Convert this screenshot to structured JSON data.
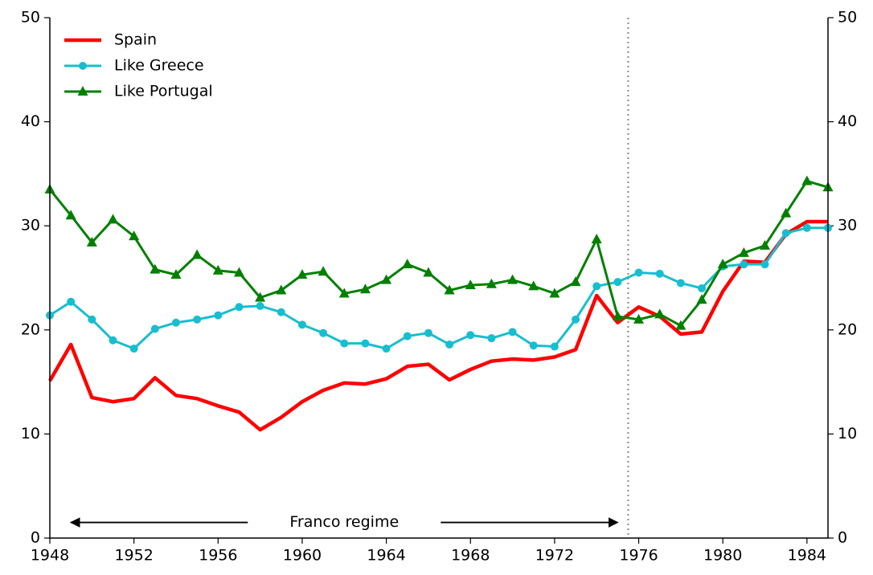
{
  "chart_data": {
    "type": "line",
    "x": [
      1948,
      1949,
      1950,
      1951,
      1952,
      1953,
      1954,
      1955,
      1956,
      1957,
      1958,
      1959,
      1960,
      1961,
      1962,
      1963,
      1964,
      1965,
      1966,
      1967,
      1968,
      1969,
      1970,
      1971,
      1972,
      1973,
      1974,
      1975,
      1976,
      1977,
      1978,
      1979,
      1980,
      1981,
      1982,
      1983,
      1984,
      1985
    ],
    "series": [
      {
        "name": "Spain",
        "color": "#ff0000",
        "marker": "none",
        "values": [
          15.1,
          18.6,
          13.5,
          13.1,
          13.4,
          15.4,
          13.7,
          13.4,
          12.7,
          12.1,
          10.4,
          11.6,
          13.1,
          14.2,
          14.9,
          14.8,
          15.3,
          16.5,
          16.7,
          15.2,
          16.2,
          17.0,
          17.2,
          17.1,
          17.4,
          18.1,
          23.3,
          20.7,
          22.2,
          21.3,
          19.6,
          19.8,
          23.7,
          26.6,
          26.5,
          29.2,
          30.4,
          30.4
        ]
      },
      {
        "name": "Like Greece",
        "color": "#17becf",
        "marker": "circle",
        "values": [
          21.4,
          22.7,
          21.0,
          19.0,
          18.2,
          20.1,
          20.7,
          21.0,
          21.4,
          22.2,
          22.3,
          21.7,
          20.5,
          19.7,
          18.7,
          18.7,
          18.2,
          19.4,
          19.7,
          18.6,
          19.5,
          19.2,
          19.8,
          18.5,
          18.4,
          21.0,
          24.2,
          24.6,
          25.5,
          25.4,
          24.5,
          24.0,
          26.1,
          26.3,
          26.3,
          29.3,
          29.8,
          29.8
        ]
      },
      {
        "name": "Like Portugal",
        "color": "#008000",
        "marker": "triangle",
        "values": [
          33.5,
          31.0,
          28.4,
          30.6,
          29.0,
          25.8,
          25.3,
          27.2,
          25.7,
          25.5,
          23.1,
          23.8,
          25.3,
          25.6,
          23.5,
          23.9,
          24.8,
          26.3,
          25.5,
          23.8,
          24.3,
          24.4,
          24.8,
          24.2,
          23.5,
          24.6,
          28.7,
          21.3,
          21.0,
          21.5,
          20.4,
          22.9,
          26.3,
          27.4,
          28.1,
          31.2,
          34.3,
          33.7
        ]
      }
    ],
    "xlim": [
      1948,
      1985
    ],
    "xticks": [
      1948,
      1952,
      1956,
      1960,
      1964,
      1968,
      1972,
      1976,
      1980,
      1984
    ],
    "ylim": [
      0,
      50
    ],
    "yticks": [
      0,
      10,
      20,
      30,
      40,
      50
    ],
    "y2lim": [
      0,
      50
    ],
    "y2ticks": [
      0,
      10,
      20,
      30,
      40,
      50
    ],
    "vline": 1975.5,
    "annotation": {
      "text": "Franco regime",
      "start": 1949,
      "end": 1975
    },
    "legend": "upper left",
    "grid": false
  }
}
